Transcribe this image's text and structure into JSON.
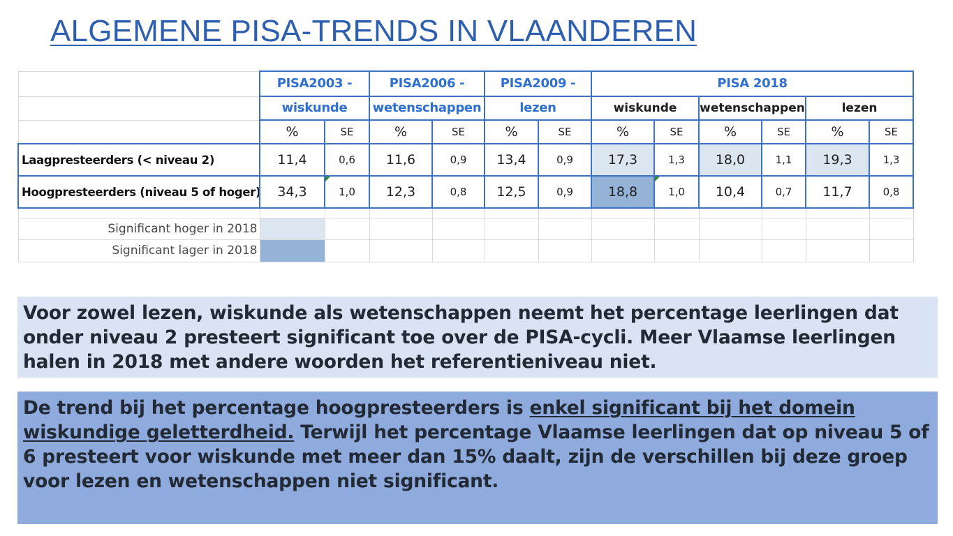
{
  "title": "ALGEMENE PISA-TRENDS IN VLAANDEREN",
  "colors": {
    "title": "#2e5faf",
    "header_text": "#2f6fd0",
    "table_border": "#3d72c4",
    "significant_higher": "#dce6f1",
    "significant_lower": "#95b3d7",
    "box1_bg": "#dae3f3",
    "box2_bg": "#8faadc"
  },
  "table": {
    "headers": {
      "pisa2003_line1": "PISA2003 -",
      "pisa2003_line2": "wiskunde",
      "pisa2006_line1": "PISA2006 -",
      "pisa2006_line2": "wetenschappen",
      "pisa2009_line1": "PISA2009 -",
      "pisa2009_line2": "lezen",
      "pisa2018": "PISA 2018",
      "sub_wiskunde": "wiskunde",
      "sub_wetenschappen": "wetenschappen",
      "sub_lezen": "lezen",
      "pct": "%",
      "se": "SE"
    },
    "rows": [
      {
        "label": "Laagpresteerders (< niveau 2)",
        "v2003_pct": "11,4",
        "v2003_se": "0,6",
        "v2006_pct": "11,6",
        "v2006_se": "0,9",
        "v2009_pct": "13,4",
        "v2009_se": "0,9",
        "v2018_wisk_pct": "17,3",
        "v2018_wisk_se": "1,3",
        "v2018_wet_pct": "18,0",
        "v2018_wet_se": "1,1",
        "v2018_lez_pct": "19,3",
        "v2018_lez_se": "1,3"
      },
      {
        "label": "Hoogpresteerders (niveau 5 of hoger)",
        "v2003_pct": "34,3",
        "v2003_se": "1,0",
        "v2006_pct": "12,3",
        "v2006_se": "0,8",
        "v2009_pct": "12,5",
        "v2009_se": "0,9",
        "v2018_wisk_pct": "18,8",
        "v2018_wisk_se": "1,0",
        "v2018_wet_pct": "10,4",
        "v2018_wet_se": "0,7",
        "v2018_lez_pct": "11,7",
        "v2018_lez_se": "0,8"
      }
    ],
    "legend": {
      "higher": "Significant hoger in 2018",
      "lower": "Significant lager in 2018"
    }
  },
  "box1": {
    "text": "Voor zowel lezen, wiskunde als wetenschappen neemt het percentage leerlingen dat onder niveau 2 presteert significant toe over de PISA-cycli. Meer Vlaamse leerlingen halen in 2018 met andere woorden het referentieniveau niet."
  },
  "box2": {
    "text_start": "De trend bij het percentage hoogpresteerders is ",
    "text_underlined": "enkel significant bij het domein wiskundige geletterdheid.",
    "text_end": " Terwijl het percentage Vlaamse leerlingen dat op niveau 5 of 6 presteert voor wiskunde met meer dan 15% daalt, zijn de verschillen bij deze groep voor lezen en wetenschappen niet significant."
  }
}
